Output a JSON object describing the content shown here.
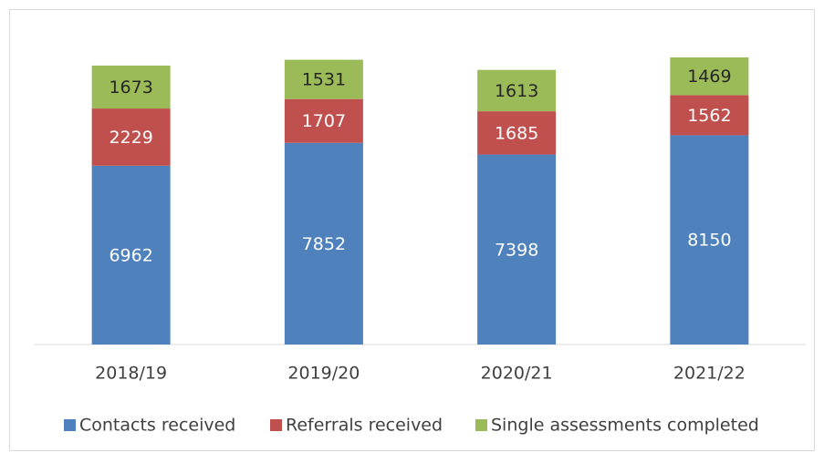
{
  "chart_data": {
    "type": "bar",
    "stacked": true,
    "categories": [
      "2018/19",
      "2019/20",
      "2020/21",
      "2021/22"
    ],
    "series": [
      {
        "name": "Contacts received",
        "color": "#4f81bd",
        "values": [
          6962,
          7852,
          7398,
          8150
        ]
      },
      {
        "name": "Referrals received",
        "color": "#c0504d",
        "values": [
          2229,
          1707,
          1685,
          1562
        ]
      },
      {
        "name": "Single assessments completed",
        "color": "#9bbb59",
        "values": [
          1673,
          1531,
          1613,
          1469
        ]
      }
    ],
    "legend": "bottom"
  }
}
